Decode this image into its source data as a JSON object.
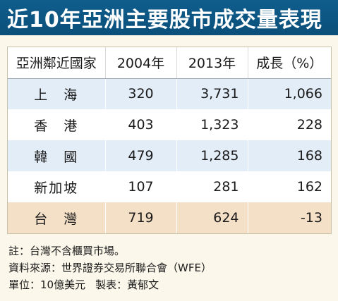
{
  "title": "近10年亞洲主要股市成交量表現",
  "chart_data": {
    "type": "table",
    "title": "近10年亞洲主要股市成交量表現",
    "columns": [
      "亞洲鄰近國家",
      "2004年",
      "2013年",
      "成長（%）"
    ],
    "rows": [
      {
        "name": "上　海",
        "v2004": "320",
        "v2013": "3,731",
        "growth": "1,066",
        "highlight": "blue"
      },
      {
        "name": "香　港",
        "v2004": "403",
        "v2013": "1,323",
        "growth": "228",
        "highlight": "white"
      },
      {
        "name": "韓　國",
        "v2004": "479",
        "v2013": "1,285",
        "growth": "168",
        "highlight": "blue"
      },
      {
        "name": "新加坡",
        "v2004": "107",
        "v2013": "281",
        "growth": "162",
        "highlight": "white"
      },
      {
        "name": "台　灣",
        "v2004": "719",
        "v2013": "624",
        "growth": "-13",
        "highlight": "taiwan"
      }
    ],
    "colors": {
      "header_bar": "#0f5d8c",
      "row_blue": "#e3edf8",
      "row_taiwan": "#f4dfc7",
      "background": "#fbf7ea"
    }
  },
  "notes": {
    "note": "註：台灣不含櫃買市場。",
    "source": "資料來源：世界證券交易所聯合會（WFE）",
    "unit": "單位：10億美元",
    "producer": "製表：黃郁文"
  }
}
